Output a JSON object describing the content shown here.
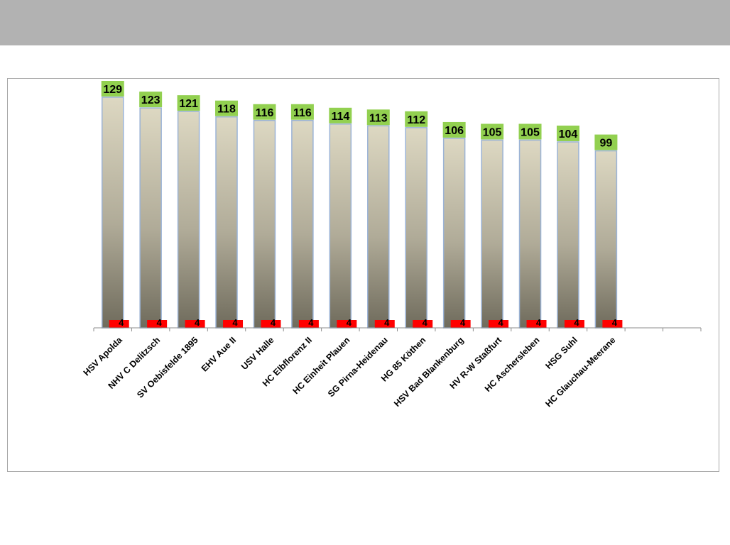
{
  "banner": {
    "color": "#b2b2b2"
  },
  "chart_data": {
    "type": "bar",
    "categories": [
      "HSV Apolda",
      "NHV C Delitzsch",
      "SV Oebisfelde 1895",
      "EHV Aue II",
      "USV Halle",
      "HC Elbflorenz II",
      "HC Einheit Plauen",
      "SG Pirna-Heidenau",
      "HG 85 Köthen",
      "HSV Bad Blankenburg",
      "HV R-W Staßfurt",
      "HC Aschersleben",
      "HSG Suhl",
      "HC Glauchau-Meerane"
    ],
    "series": [
      {
        "values": [
          129,
          123,
          121,
          118,
          116,
          116,
          114,
          113,
          112,
          106,
          105,
          105,
          104,
          99
        ],
        "color": "#d9d4bd",
        "label_color": "#92d050"
      },
      {
        "values": [
          4,
          4,
          4,
          4,
          4,
          4,
          4,
          4,
          4,
          4,
          4,
          4,
          4,
          4
        ],
        "color": "#ff0000"
      }
    ],
    "empty_slots_after": 2,
    "ylim": [
      0,
      129
    ],
    "grid": false,
    "legend": "none",
    "title": "",
    "xlabel": "",
    "ylabel": ""
  }
}
